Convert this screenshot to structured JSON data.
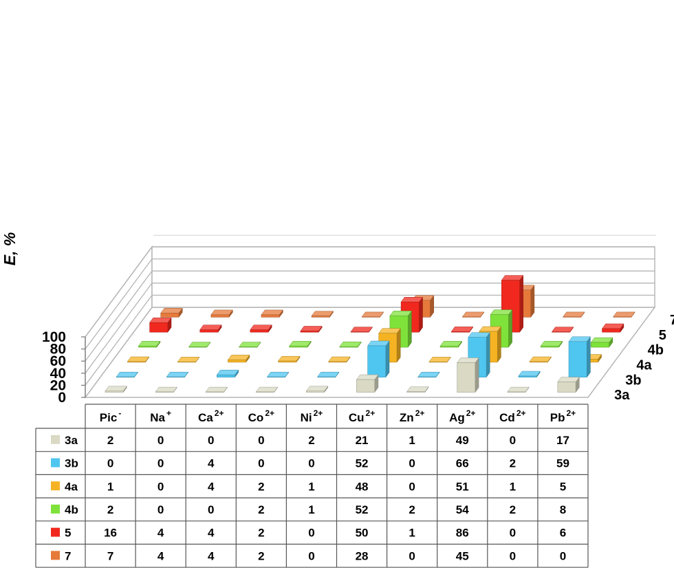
{
  "chart_data": {
    "type": "bar",
    "subtype": "3d-grouped-bar-with-data-table",
    "ylabel": "E, %",
    "ylim": [
      0,
      100
    ],
    "yticks": [
      "0",
      "20",
      "40",
      "60",
      "80",
      "100"
    ],
    "grid": true,
    "categories": [
      {
        "base": "Pic",
        "sup": "-"
      },
      {
        "base": "Na",
        "sup": "+"
      },
      {
        "base": "Ca",
        "sup": "2+"
      },
      {
        "base": "Co",
        "sup": "2+"
      },
      {
        "base": "Ni",
        "sup": "2+"
      },
      {
        "base": "Cu",
        "sup": "2+"
      },
      {
        "base": "Zn",
        "sup": "2+"
      },
      {
        "base": "Ag",
        "sup": "2+"
      },
      {
        "base": "Cd",
        "sup": "2+"
      },
      {
        "base": "Pb",
        "sup": "2+"
      }
    ],
    "series": [
      {
        "name": "3a",
        "color": "#d9d9c4",
        "values": [
          2,
          0,
          0,
          0,
          2,
          21,
          1,
          49,
          0,
          17
        ]
      },
      {
        "name": "3b",
        "color": "#4fc6f0",
        "values": [
          0,
          0,
          4,
          0,
          0,
          52,
          0,
          66,
          2,
          59
        ]
      },
      {
        "name": "4a",
        "color": "#f5b323",
        "values": [
          1,
          0,
          4,
          2,
          1,
          48,
          0,
          51,
          1,
          5
        ]
      },
      {
        "name": "4b",
        "color": "#7fe23a",
        "values": [
          2,
          0,
          0,
          2,
          1,
          52,
          2,
          54,
          2,
          8
        ]
      },
      {
        "name": "5",
        "color": "#f0281e",
        "values": [
          16,
          4,
          4,
          2,
          0,
          50,
          1,
          86,
          0,
          6
        ]
      },
      {
        "name": "7",
        "color": "#e67a3b",
        "values": [
          7,
          4,
          4,
          2,
          0,
          28,
          0,
          45,
          0,
          0
        ]
      }
    ]
  }
}
